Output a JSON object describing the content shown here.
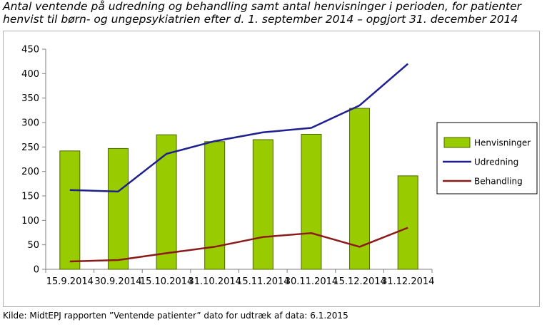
{
  "title": {
    "line1": "Antal ventende på udredning og behandling samt antal henvisninger i perioden, for patienter",
    "line2": "henvist til børn- og ungepsykiatrien efter d. 1. september 2014 – opgjort 31. december 2014"
  },
  "source": "Kilde: MidtEPJ rapporten ”Ventende patienter” dato for udtræk af data: 6.1.2015",
  "colors": {
    "bar_fill": "#99cc00",
    "bar_stroke": "#4d6600",
    "udredning": "#1f1f8f",
    "behandling": "#8b1a1a",
    "axis": "#808080",
    "grid": "#808080"
  },
  "chart_data": {
    "type": "bar",
    "categories": [
      "15.9.2014",
      "30.9.2014",
      "15.10.2014",
      "31.10.2014",
      "15.11.2014",
      "30.11.2014",
      "15.12.2014",
      "31.12.2014"
    ],
    "ylim": [
      0,
      450
    ],
    "yticks": [
      "0",
      "50",
      "100",
      "150",
      "200",
      "250",
      "300",
      "350",
      "400",
      "450"
    ],
    "grid": false,
    "legend_position": "right",
    "series": [
      {
        "name": "Henvisninger",
        "type": "bar",
        "values": [
          242,
          247,
          275,
          261,
          265,
          276,
          329,
          191
        ]
      },
      {
        "name": "Udredning",
        "type": "line",
        "values": [
          162,
          159,
          236,
          262,
          280,
          289,
          335,
          420
        ]
      },
      {
        "name": "Behandling",
        "type": "line",
        "values": [
          16,
          19,
          33,
          46,
          66,
          74,
          46,
          85
        ]
      }
    ]
  }
}
